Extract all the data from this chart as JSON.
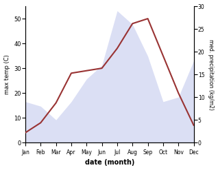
{
  "months": [
    "Jan",
    "Feb",
    "Mar",
    "Apr",
    "May",
    "Jun",
    "Jul",
    "Aug",
    "Sep",
    "Oct",
    "Nov",
    "Dec"
  ],
  "temperature": [
    4,
    8,
    16,
    28,
    29,
    30,
    38,
    48,
    50,
    35,
    20,
    7
  ],
  "precipitation": [
    9,
    8,
    5,
    9,
    14,
    17,
    29,
    26,
    19,
    9,
    10,
    18
  ],
  "temp_color": "#993333",
  "precip_color": "#b0b8e8",
  "temp_ylim": [
    0,
    55
  ],
  "precip_ylim": [
    0,
    30
  ],
  "temp_yticks": [
    0,
    10,
    20,
    30,
    40,
    50
  ],
  "precip_yticks": [
    0,
    5,
    10,
    15,
    20,
    25,
    30
  ],
  "xlabel": "date (month)",
  "ylabel_left": "max temp (C)",
  "ylabel_right": "med. precipitation (kg/m2)"
}
